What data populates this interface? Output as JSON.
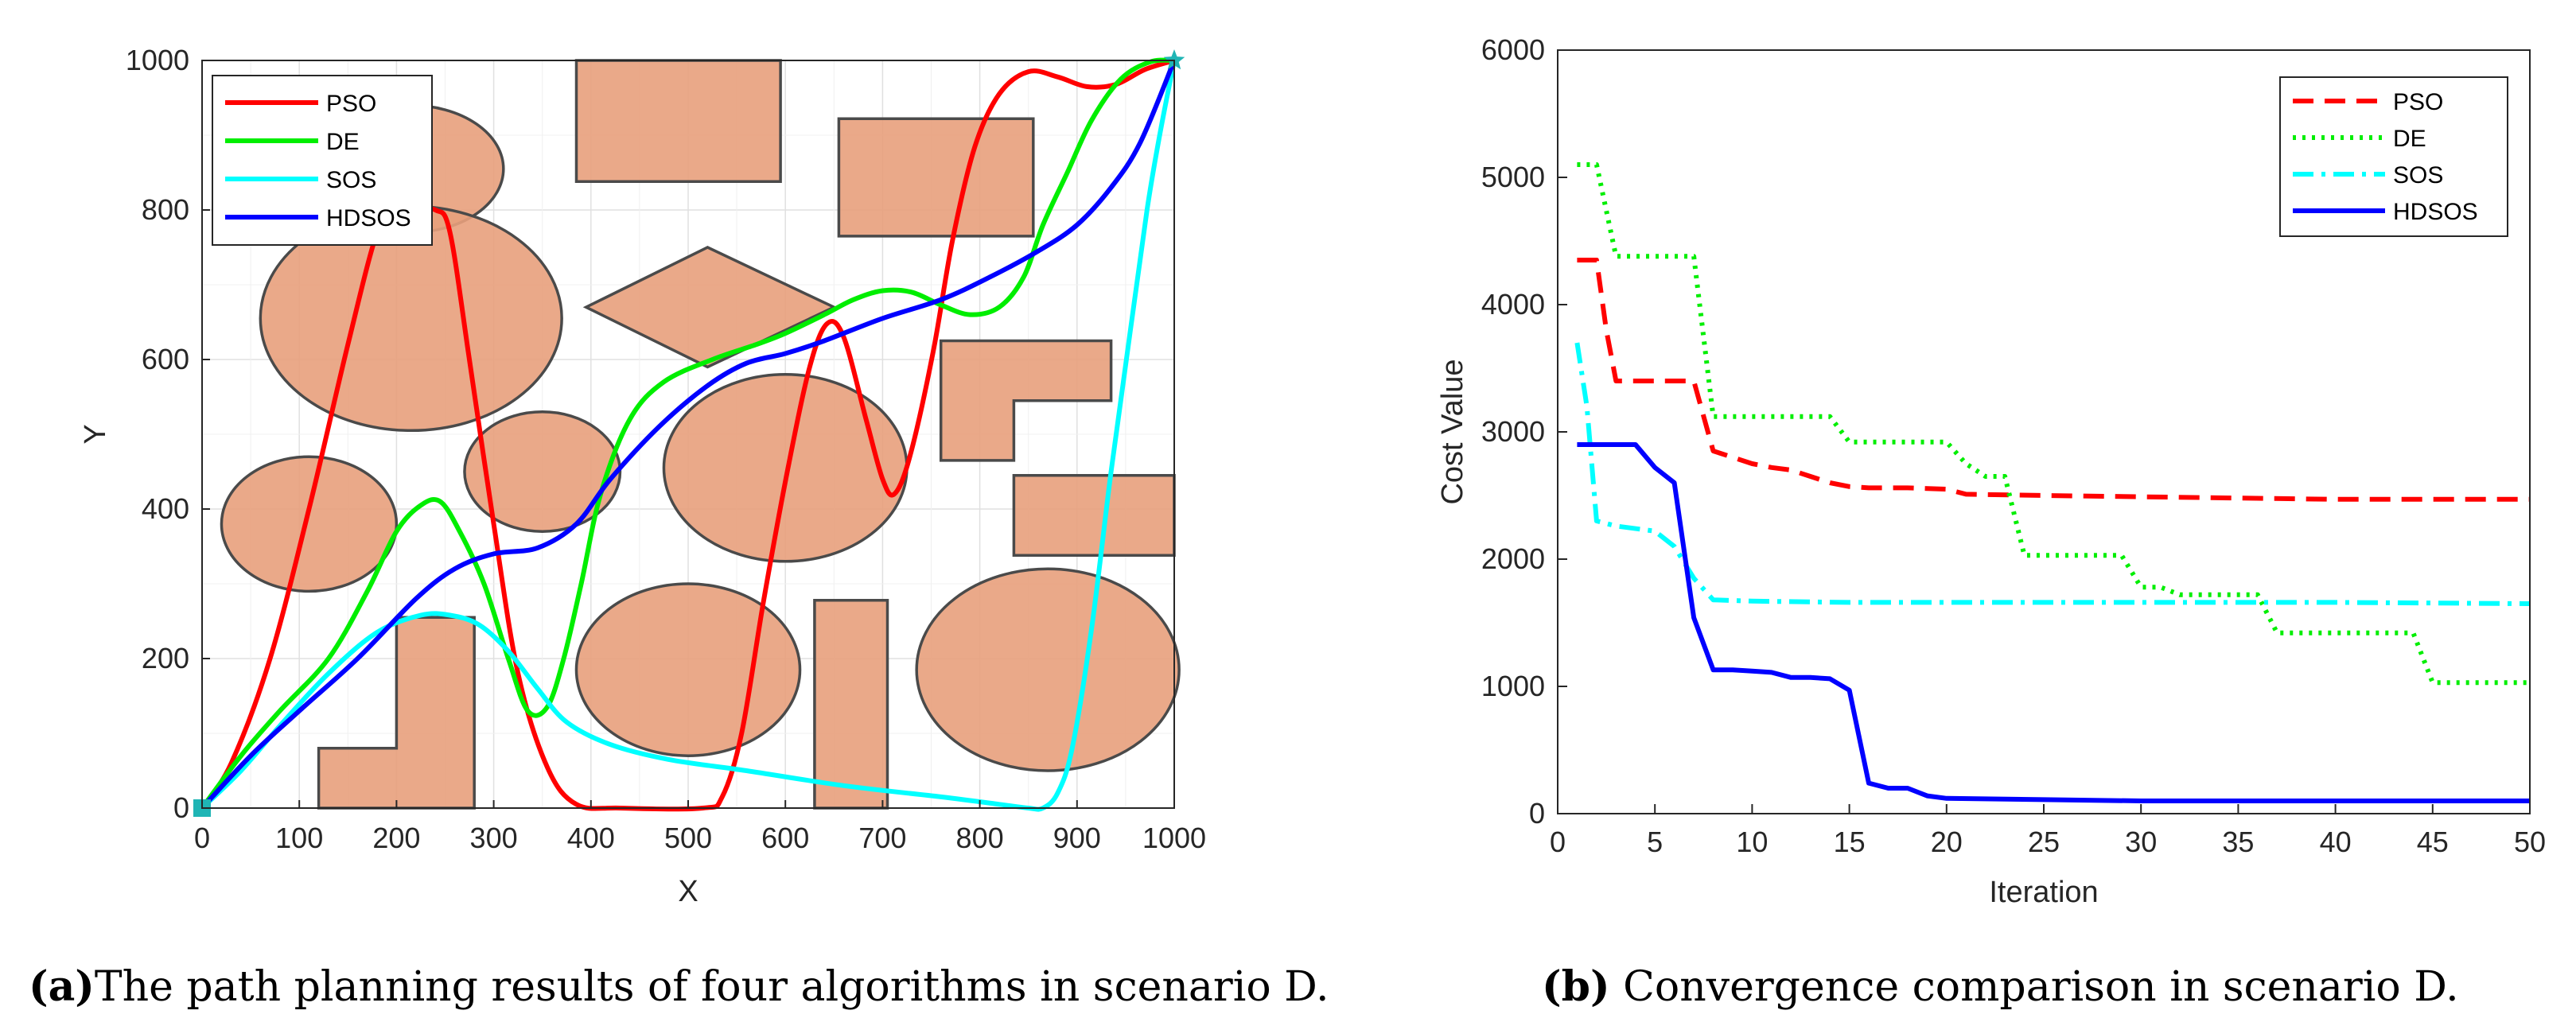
{
  "colors": {
    "pso": "#ff0000",
    "de": "#00ee00",
    "sos": "#00ffff",
    "hdsos": "#0000ff",
    "obstacle_fill": "#e8a07c",
    "obstacle_edge": "#4a4a4a",
    "marker": "#1fb5b5"
  },
  "chart_data": [
    {
      "panel": "a",
      "type": "line",
      "xlabel": "X",
      "ylabel": "Y",
      "xlim": [
        0,
        1000
      ],
      "ylim": [
        0,
        1000
      ],
      "xticks": [
        0,
        100,
        200,
        300,
        400,
        500,
        600,
        700,
        800,
        900,
        1000
      ],
      "yticks": [
        0,
        200,
        400,
        600,
        800,
        1000
      ],
      "grid": true,
      "legend_position": "top-left",
      "legend": [
        "PSO",
        "DE",
        "SOS",
        "HDSOS"
      ],
      "start": [
        0,
        0
      ],
      "goal": [
        1000,
        1000
      ],
      "obstacles": [
        {
          "shape": "ellipse",
          "cx": 215,
          "cy": 855,
          "rx": 95,
          "ry": 85
        },
        {
          "shape": "ellipse",
          "cx": 215,
          "cy": 655,
          "rx": 155,
          "ry": 150
        },
        {
          "shape": "ellipse",
          "cx": 110,
          "cy": 380,
          "rx": 90,
          "ry": 90
        },
        {
          "shape": "ellipse",
          "cx": 350,
          "cy": 450,
          "rx": 80,
          "ry": 80
        },
        {
          "shape": "ellipse",
          "cx": 600,
          "cy": 455,
          "rx": 125,
          "ry": 125
        },
        {
          "shape": "ellipse",
          "cx": 500,
          "cy": 185,
          "rx": 115,
          "ry": 115
        },
        {
          "shape": "ellipse",
          "cx": 870,
          "cy": 185,
          "rx": 135,
          "ry": 135
        },
        {
          "shape": "polygon",
          "points": [
            [
              385,
              838
            ],
            [
              595,
              838
            ],
            [
              595,
              1000
            ],
            [
              385,
              1000
            ]
          ]
        },
        {
          "shape": "polygon",
          "points": [
            [
              655,
              765
            ],
            [
              855,
              765
            ],
            [
              855,
              922
            ],
            [
              655,
              922
            ]
          ]
        },
        {
          "shape": "polygon",
          "points": [
            [
              395,
              670
            ],
            [
              520,
              750
            ],
            [
              650,
              670
            ],
            [
              520,
              590
            ]
          ]
        },
        {
          "shape": "polygon",
          "points": [
            [
              760,
              465
            ],
            [
              835,
              465
            ],
            [
              835,
              545
            ],
            [
              935,
              545
            ],
            [
              935,
              625
            ],
            [
              760,
              625
            ]
          ]
        },
        {
          "shape": "polygon",
          "points": [
            [
              835,
              338
            ],
            [
              1000,
              338
            ],
            [
              1000,
              445
            ],
            [
              835,
              445
            ]
          ]
        },
        {
          "shape": "polygon",
          "points": [
            [
              120,
              0
            ],
            [
              280,
              0
            ],
            [
              280,
              255
            ],
            [
              200,
              255
            ],
            [
              200,
              80
            ],
            [
              120,
              80
            ]
          ]
        },
        {
          "shape": "polygon",
          "points": [
            [
              630,
              0
            ],
            [
              705,
              0
            ],
            [
              705,
              278
            ],
            [
              630,
              278
            ]
          ]
        }
      ],
      "series": [
        {
          "name": "PSO",
          "points": [
            [
              0,
              0
            ],
            [
              30,
              60
            ],
            [
              70,
              200
            ],
            [
              110,
              400
            ],
            [
              150,
              620
            ],
            [
              180,
              770
            ],
            [
              200,
              810
            ],
            [
              215,
              800
            ],
            [
              240,
              800
            ],
            [
              255,
              770
            ],
            [
              275,
              600
            ],
            [
              300,
              380
            ],
            [
              325,
              180
            ],
            [
              355,
              55
            ],
            [
              385,
              5
            ],
            [
              430,
              0
            ],
            [
              515,
              0
            ],
            [
              535,
              15
            ],
            [
              555,
              100
            ],
            [
              578,
              280
            ],
            [
              602,
              450
            ],
            [
              625,
              590
            ],
            [
              643,
              648
            ],
            [
              660,
              630
            ],
            [
              683,
              520
            ],
            [
              700,
              440
            ],
            [
              712,
              420
            ],
            [
              728,
              470
            ],
            [
              752,
              610
            ],
            [
              772,
              760
            ],
            [
              795,
              885
            ],
            [
              820,
              955
            ],
            [
              850,
              985
            ],
            [
              880,
              978
            ],
            [
              910,
              965
            ],
            [
              940,
              968
            ],
            [
              970,
              988
            ],
            [
              1000,
              1000
            ]
          ]
        },
        {
          "name": "DE",
          "points": [
            [
              0,
              0
            ],
            [
              40,
              70
            ],
            [
              80,
              130
            ],
            [
              130,
              200
            ],
            [
              170,
              290
            ],
            [
              200,
              370
            ],
            [
              225,
              405
            ],
            [
              245,
              410
            ],
            [
              265,
              370
            ],
            [
              290,
              300
            ],
            [
              315,
              200
            ],
            [
              335,
              130
            ],
            [
              355,
              135
            ],
            [
              372,
              200
            ],
            [
              390,
              300
            ],
            [
              410,
              420
            ],
            [
              440,
              520
            ],
            [
              475,
              570
            ],
            [
              525,
              600
            ],
            [
              570,
              620
            ],
            [
              600,
              635
            ],
            [
              640,
              660
            ],
            [
              670,
              680
            ],
            [
              700,
              692
            ],
            [
              730,
              690
            ],
            [
              760,
              673
            ],
            [
              790,
              660
            ],
            [
              820,
              670
            ],
            [
              845,
              710
            ],
            [
              865,
              780
            ],
            [
              890,
              850
            ],
            [
              915,
              920
            ],
            [
              945,
              975
            ],
            [
              975,
              998
            ],
            [
              1000,
              1000
            ]
          ]
        },
        {
          "name": "SOS",
          "points": [
            [
              0,
              0
            ],
            [
              40,
              50
            ],
            [
              80,
              110
            ],
            [
              130,
              180
            ],
            [
              180,
              235
            ],
            [
              225,
              258
            ],
            [
              255,
              258
            ],
            [
              285,
              245
            ],
            [
              315,
              210
            ],
            [
              345,
              160
            ],
            [
              375,
              115
            ],
            [
              420,
              85
            ],
            [
              480,
              65
            ],
            [
              560,
              50
            ],
            [
              660,
              30
            ],
            [
              760,
              15
            ],
            [
              820,
              5
            ],
            [
              850,
              0
            ],
            [
              865,
              0
            ],
            [
              880,
              20
            ],
            [
              895,
              80
            ],
            [
              915,
              240
            ],
            [
              935,
              450
            ],
            [
              955,
              640
            ],
            [
              972,
              800
            ],
            [
              985,
              900
            ],
            [
              1000,
              1000
            ]
          ]
        },
        {
          "name": "HDSOS",
          "points": [
            [
              0,
              0
            ],
            [
              50,
              70
            ],
            [
              100,
              130
            ],
            [
              160,
              200
            ],
            [
              220,
              280
            ],
            [
              260,
              320
            ],
            [
              300,
              340
            ],
            [
              345,
              348
            ],
            [
              385,
              380
            ],
            [
              420,
              440
            ],
            [
              470,
              510
            ],
            [
              520,
              565
            ],
            [
              560,
              595
            ],
            [
              600,
              608
            ],
            [
              640,
              625
            ],
            [
              700,
              655
            ],
            [
              760,
              680
            ],
            [
              810,
              710
            ],
            [
              860,
              745
            ],
            [
              900,
              780
            ],
            [
              935,
              830
            ],
            [
              965,
              890
            ],
            [
              1000,
              1000
            ]
          ]
        }
      ]
    },
    {
      "panel": "b",
      "type": "line",
      "xlabel": "Iteration",
      "ylabel": "Cost Value",
      "xlim": [
        0,
        50
      ],
      "ylim": [
        0,
        6000
      ],
      "xticks": [
        0,
        5,
        10,
        15,
        20,
        25,
        30,
        35,
        40,
        45,
        50
      ],
      "yticks": [
        0,
        1000,
        2000,
        3000,
        4000,
        5000,
        6000
      ],
      "grid": false,
      "legend_position": "top-right",
      "legend": [
        "PSO",
        "DE",
        "SOS",
        "HDSOS"
      ],
      "series": [
        {
          "name": "PSO",
          "x": [
            1,
            2,
            2.5,
            3,
            4,
            5,
            6,
            6.5,
            7,
            8,
            9,
            10,
            11,
            12,
            13,
            14,
            15,
            16,
            18,
            20,
            21,
            25,
            30,
            35,
            40,
            45,
            50
          ],
          "y": [
            4350,
            4350,
            3800,
            3400,
            3400,
            3400,
            3400,
            3400,
            3400,
            2850,
            2800,
            2750,
            2720,
            2700,
            2650,
            2600,
            2570,
            2560,
            2560,
            2550,
            2510,
            2500,
            2490,
            2480,
            2470,
            2470,
            2470
          ]
        },
        {
          "name": "DE",
          "x": [
            1,
            2,
            3,
            7,
            8,
            14,
            15,
            20,
            21,
            22,
            23,
            24,
            29,
            30,
            31,
            32,
            36,
            37,
            44,
            45,
            50
          ],
          "y": [
            5100,
            5100,
            4380,
            4380,
            3120,
            3120,
            2920,
            2920,
            2750,
            2650,
            2650,
            2030,
            2030,
            1780,
            1780,
            1720,
            1720,
            1420,
            1420,
            1030,
            1030
          ]
        },
        {
          "name": "SOS",
          "x": [
            1,
            1.5,
            2,
            3,
            5,
            6,
            7,
            8,
            10,
            15,
            20,
            30,
            40,
            50
          ],
          "y": [
            3700,
            3200,
            2300,
            2260,
            2220,
            2100,
            1850,
            1680,
            1670,
            1660,
            1660,
            1660,
            1660,
            1650
          ]
        },
        {
          "name": "HDSOS",
          "x": [
            1,
            2,
            3,
            4,
            5,
            6,
            7,
            8,
            9,
            10,
            11,
            12,
            13,
            14,
            15,
            16,
            17,
            18,
            19,
            20,
            25,
            30,
            40,
            50
          ],
          "y": [
            2900,
            2900,
            2900,
            2900,
            2720,
            2600,
            1540,
            1130,
            1130,
            1120,
            1110,
            1070,
            1070,
            1060,
            970,
            240,
            200,
            200,
            140,
            120,
            110,
            100,
            100,
            100
          ]
        }
      ]
    }
  ],
  "captions": {
    "a_label": "(a)",
    "a_text": "The path planning results of four algorithms in scenario D.",
    "b_label": "(b)",
    "b_text": " Convergence comparison in scenario D."
  }
}
